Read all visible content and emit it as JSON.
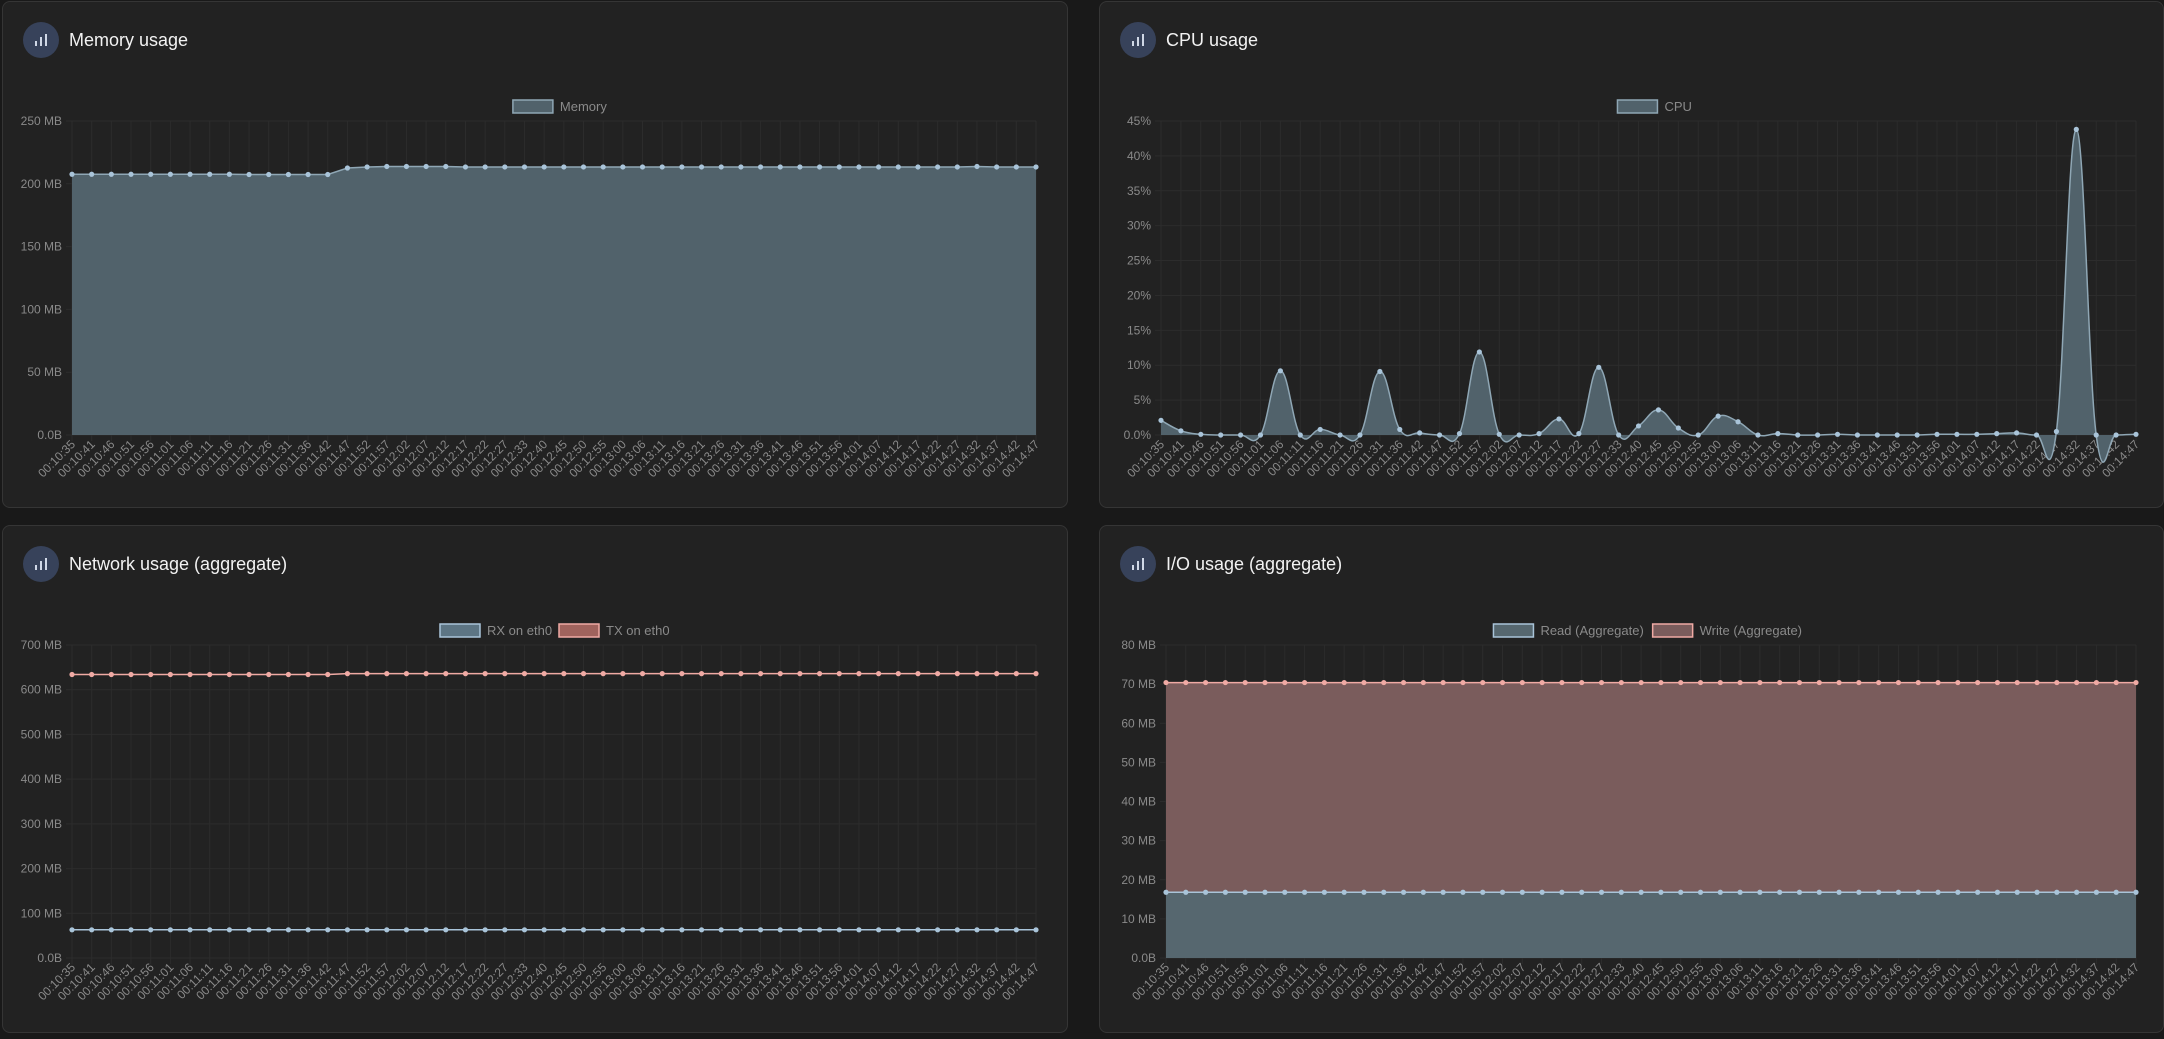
{
  "panels": [
    {
      "title": "Memory usage",
      "icon": "bar-chart-icon"
    },
    {
      "title": "CPU usage",
      "icon": "bar-chart-icon"
    },
    {
      "title": "Network usage (aggregate)",
      "icon": "bar-chart-icon"
    },
    {
      "title": "I/O usage (aggregate)",
      "icon": "bar-chart-icon"
    }
  ],
  "colors": {
    "panel_bg": "#222222",
    "grid": "#2c2c2c",
    "tick_text": "#8a8a8a",
    "point": "#a9c4d9",
    "point_red": "#f0aaa4"
  },
  "chart_data": [
    {
      "type": "area",
      "title": "Memory usage",
      "x": [
        "00:10:35",
        "00:10:41",
        "00:10:46",
        "00:10:51",
        "00:10:56",
        "00:11:01",
        "00:11:06",
        "00:11:11",
        "00:11:16",
        "00:11:21",
        "00:11:26",
        "00:11:31",
        "00:11:36",
        "00:11:42",
        "00:11:47",
        "00:11:52",
        "00:11:57",
        "00:12:02",
        "00:12:07",
        "00:12:12",
        "00:12:17",
        "00:12:22",
        "00:12:27",
        "00:12:33",
        "00:12:40",
        "00:12:45",
        "00:12:50",
        "00:12:55",
        "00:13:00",
        "00:13:06",
        "00:13:11",
        "00:13:16",
        "00:13:21",
        "00:13:26",
        "00:13:31",
        "00:13:36",
        "00:13:41",
        "00:13:46",
        "00:13:51",
        "00:13:56",
        "00:14:01",
        "00:14:07",
        "00:14:12",
        "00:14:17",
        "00:14:22",
        "00:14:27",
        "00:14:32",
        "00:14:37",
        "00:14:42",
        "00:14:47"
      ],
      "ylim": [
        0,
        250
      ],
      "yticks": [
        "0.0B",
        "50 MB",
        "100 MB",
        "150 MB",
        "200 MB",
        "250 MB"
      ],
      "legend_position": "top-center",
      "series": [
        {
          "name": "Memory",
          "fill": "#51626b",
          "stroke": "#8fa7b5",
          "point": "#a9c4d9",
          "values": [
            207.6,
            207.6,
            207.6,
            207.6,
            207.6,
            207.6,
            207.6,
            207.6,
            207.6,
            207.4,
            207.4,
            207.4,
            207.4,
            207.4,
            212.6,
            213.4,
            213.8,
            213.8,
            213.8,
            213.8,
            213.4,
            213.4,
            213.4,
            213.4,
            213.4,
            213.4,
            213.4,
            213.4,
            213.4,
            213.4,
            213.4,
            213.4,
            213.4,
            213.4,
            213.4,
            213.4,
            213.4,
            213.4,
            213.4,
            213.4,
            213.4,
            213.4,
            213.4,
            213.4,
            213.4,
            213.4,
            213.8,
            213.4,
            213.4,
            213.4
          ]
        }
      ]
    },
    {
      "type": "area",
      "title": "CPU usage",
      "x": [
        "00:10:35",
        "00:10:41",
        "00:10:46",
        "00:10:51",
        "00:10:56",
        "00:11:01",
        "00:11:06",
        "00:11:11",
        "00:11:16",
        "00:11:21",
        "00:11:26",
        "00:11:31",
        "00:11:36",
        "00:11:42",
        "00:11:47",
        "00:11:52",
        "00:11:57",
        "00:12:02",
        "00:12:07",
        "00:12:12",
        "00:12:17",
        "00:12:22",
        "00:12:27",
        "00:12:33",
        "00:12:40",
        "00:12:45",
        "00:12:50",
        "00:12:55",
        "00:13:00",
        "00:13:06",
        "00:13:11",
        "00:13:16",
        "00:13:21",
        "00:13:26",
        "00:13:31",
        "00:13:36",
        "00:13:41",
        "00:13:46",
        "00:13:51",
        "00:13:56",
        "00:14:01",
        "00:14:07",
        "00:14:12",
        "00:14:17",
        "00:14:22",
        "00:14:27",
        "00:14:32",
        "00:14:37",
        "00:14:42",
        "00:14:47"
      ],
      "ylim": [
        0,
        45
      ],
      "yticks": [
        "0.0%",
        "5%",
        "10%",
        "15%",
        "20%",
        "25%",
        "30%",
        "35%",
        "40%",
        "45%"
      ],
      "legend_position": "top-center",
      "series": [
        {
          "name": "CPU",
          "fill": "#51626b",
          "stroke": "#8fa7b5",
          "point": "#a9c4d9",
          "values": [
            2.1,
            0.6,
            0.1,
            0.0,
            0.0,
            0.0,
            9.2,
            0.0,
            0.8,
            0.0,
            0.0,
            9.1,
            0.8,
            0.3,
            0.0,
            0.2,
            11.9,
            0.1,
            0.0,
            0.2,
            2.3,
            0.2,
            9.7,
            0.0,
            1.3,
            3.6,
            1.0,
            0.0,
            2.7,
            1.9,
            0.0,
            0.2,
            0.0,
            0.0,
            0.1,
            0.0,
            0.0,
            0.0,
            0.0,
            0.1,
            0.1,
            0.1,
            0.2,
            0.3,
            0.0,
            0.5,
            43.8,
            0.0,
            0.0,
            0.1
          ]
        }
      ]
    },
    {
      "type": "line",
      "title": "Network usage (aggregate)",
      "x": [
        "00:10:35",
        "00:10:41",
        "00:10:46",
        "00:10:51",
        "00:10:56",
        "00:11:01",
        "00:11:06",
        "00:11:11",
        "00:11:16",
        "00:11:21",
        "00:11:26",
        "00:11:31",
        "00:11:36",
        "00:11:42",
        "00:11:47",
        "00:11:52",
        "00:11:57",
        "00:12:02",
        "00:12:07",
        "00:12:12",
        "00:12:17",
        "00:12:22",
        "00:12:27",
        "00:12:33",
        "00:12:40",
        "00:12:45",
        "00:12:50",
        "00:12:55",
        "00:13:00",
        "00:13:06",
        "00:13:11",
        "00:13:16",
        "00:13:21",
        "00:13:26",
        "00:13:31",
        "00:13:36",
        "00:13:41",
        "00:13:46",
        "00:13:51",
        "00:13:56",
        "00:14:01",
        "00:14:07",
        "00:14:12",
        "00:14:17",
        "00:14:22",
        "00:14:27",
        "00:14:32",
        "00:14:37",
        "00:14:42",
        "00:14:47"
      ],
      "ylim": [
        0,
        700
      ],
      "yticks": [
        "0.0B",
        "100 MB",
        "200 MB",
        "300 MB",
        "400 MB",
        "500 MB",
        "600 MB",
        "700 MB"
      ],
      "legend_position": "top-center",
      "series": [
        {
          "name": "RX on eth0",
          "fill": "#5d7584",
          "stroke": "#a9c4d9",
          "point": "#a9c4d9",
          "values": [
            63,
            63,
            63,
            63,
            63,
            63,
            63,
            63,
            63,
            63,
            63,
            63,
            63,
            63,
            63,
            63,
            63,
            63,
            63,
            63,
            63,
            63,
            63,
            63,
            63,
            63,
            63,
            63,
            63,
            63,
            63,
            63,
            63,
            63,
            63,
            63,
            63,
            63,
            63,
            63,
            63,
            63,
            63,
            63,
            63,
            63,
            63,
            63,
            63,
            63
          ]
        },
        {
          "name": "TX on eth0",
          "fill": "#a0635d",
          "stroke": "#f0aaa4",
          "point": "#f0aaa4",
          "values": [
            634,
            634,
            634,
            634,
            634,
            634,
            634,
            634,
            634,
            634,
            634,
            634,
            634,
            634,
            636,
            636,
            636,
            636,
            636,
            636,
            636,
            636,
            636,
            636,
            636,
            636,
            636,
            636,
            636,
            636,
            636,
            636,
            636,
            636,
            636,
            636,
            636,
            636,
            636,
            636,
            636,
            636,
            636,
            636,
            636,
            636,
            636,
            636,
            636,
            636
          ]
        }
      ]
    },
    {
      "type": "area",
      "title": "I/O usage (aggregate)",
      "x": [
        "00:10:35",
        "00:10:41",
        "00:10:46",
        "00:10:51",
        "00:10:56",
        "00:11:01",
        "00:11:06",
        "00:11:11",
        "00:11:16",
        "00:11:21",
        "00:11:26",
        "00:11:31",
        "00:11:36",
        "00:11:42",
        "00:11:47",
        "00:11:52",
        "00:11:57",
        "00:12:02",
        "00:12:07",
        "00:12:12",
        "00:12:17",
        "00:12:22",
        "00:12:27",
        "00:12:33",
        "00:12:40",
        "00:12:45",
        "00:12:50",
        "00:12:55",
        "00:13:00",
        "00:13:06",
        "00:13:11",
        "00:13:16",
        "00:13:21",
        "00:13:26",
        "00:13:31",
        "00:13:36",
        "00:13:41",
        "00:13:46",
        "00:13:51",
        "00:13:56",
        "00:14:01",
        "00:14:07",
        "00:14:12",
        "00:14:17",
        "00:14:22",
        "00:14:27",
        "00:14:32",
        "00:14:37",
        "00:14:42",
        "00:14:47"
      ],
      "ylim": [
        0,
        80
      ],
      "yticks": [
        "0.0B",
        "10 MB",
        "20 MB",
        "30 MB",
        "40 MB",
        "50 MB",
        "60 MB",
        "70 MB",
        "80 MB"
      ],
      "legend_position": "top-center",
      "series": [
        {
          "name": "Read (Aggregate)",
          "fill": "#56676f",
          "stroke": "#a9c4d9",
          "point": "#a9c4d9",
          "values": [
            16.8,
            16.8,
            16.8,
            16.8,
            16.8,
            16.8,
            16.8,
            16.8,
            16.8,
            16.8,
            16.8,
            16.8,
            16.8,
            16.8,
            16.8,
            16.8,
            16.8,
            16.8,
            16.8,
            16.8,
            16.8,
            16.8,
            16.8,
            16.8,
            16.8,
            16.8,
            16.8,
            16.8,
            16.8,
            16.8,
            16.8,
            16.8,
            16.8,
            16.8,
            16.8,
            16.8,
            16.8,
            16.8,
            16.8,
            16.8,
            16.8,
            16.8,
            16.8,
            16.8,
            16.8,
            16.8,
            16.8,
            16.8,
            16.8,
            16.8
          ]
        },
        {
          "name": "Write (Aggregate)",
          "fill": "#7a5c5c",
          "stroke": "#f0aaa4",
          "point": "#f0aaa4",
          "values": [
            70.4,
            70.4,
            70.4,
            70.4,
            70.4,
            70.4,
            70.4,
            70.4,
            70.4,
            70.4,
            70.4,
            70.4,
            70.4,
            70.4,
            70.4,
            70.4,
            70.4,
            70.4,
            70.4,
            70.4,
            70.4,
            70.4,
            70.4,
            70.4,
            70.4,
            70.4,
            70.4,
            70.4,
            70.4,
            70.4,
            70.4,
            70.4,
            70.4,
            70.4,
            70.4,
            70.4,
            70.4,
            70.4,
            70.4,
            70.4,
            70.4,
            70.4,
            70.4,
            70.4,
            70.4,
            70.4,
            70.4,
            70.4,
            70.4,
            70.4
          ]
        }
      ]
    }
  ]
}
